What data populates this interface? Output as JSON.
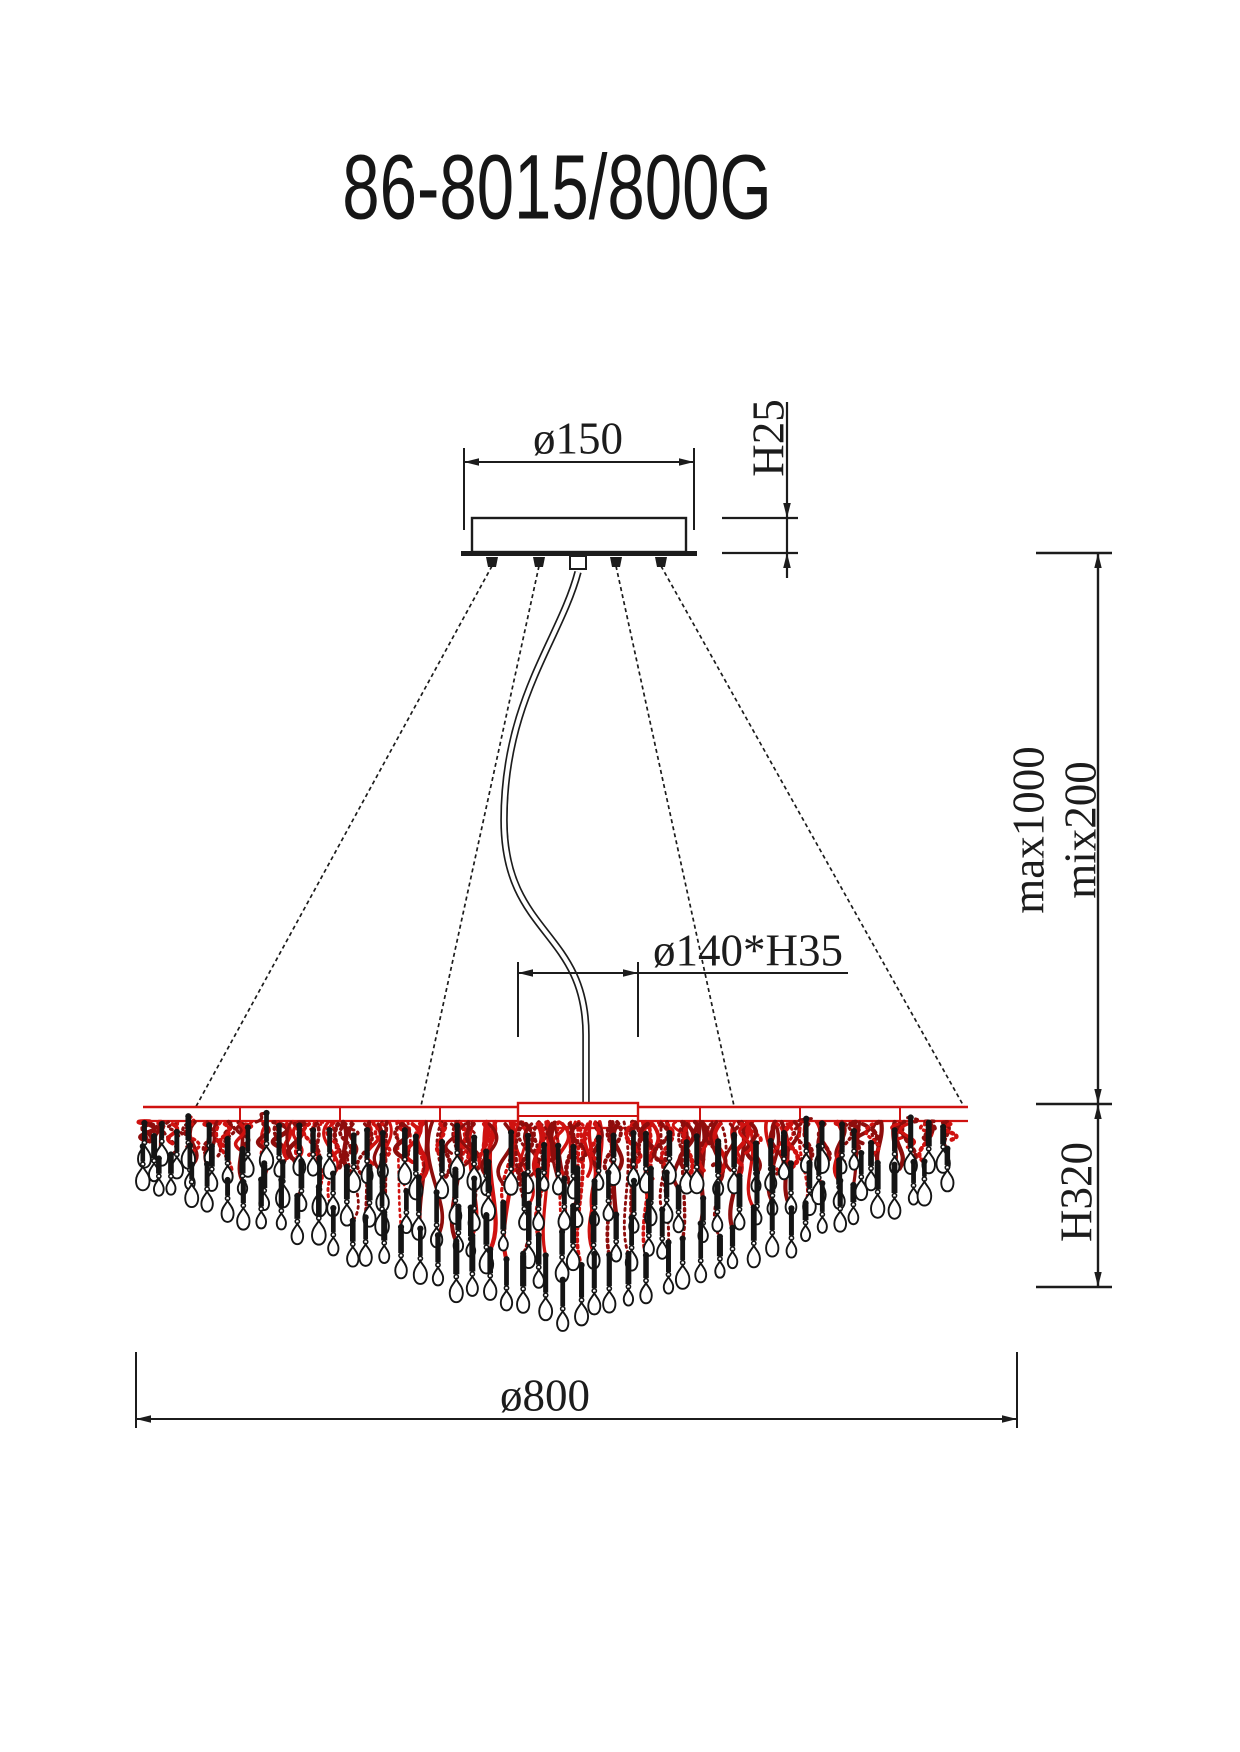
{
  "title": "86-8015/800G",
  "labels": {
    "canopy_diameter": "ø150",
    "canopy_height": "H25",
    "center_hub": "ø140*H35",
    "suspension_max": "max1000",
    "suspension_min": "mix200",
    "body_height": "H320",
    "body_diameter": "ø800"
  },
  "colors": {
    "line": "#1c1c1c",
    "wire_red": "#cf1210",
    "wire_dark_red": "#8e0d0c",
    "crystal": "#141414",
    "background": "#ffffff"
  }
}
